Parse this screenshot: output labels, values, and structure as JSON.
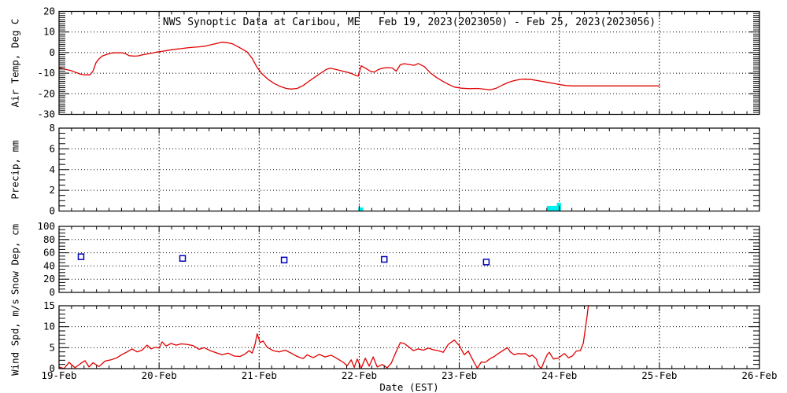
{
  "title": "NWS Synoptic Data at Caribou, ME   Feb 19, 2023(2023050) - Feb 25, 2023(2023056)",
  "colors": {
    "line": "#e00000",
    "precip_bar": "#00eeee",
    "snow_marker": "#0000bb",
    "axis": "#000000",
    "background": "#ffffff"
  },
  "chart_data": {
    "type": "multi-panel",
    "title": "NWS Synoptic Data at Caribou, ME   Feb 19, 2023(2023050) - Feb 25, 2023(2023056)",
    "grid": "dotted horizontal at major y ticks, dotted vertical at each day",
    "x": {
      "label": "Date (EST)",
      "range_days": [
        0,
        7
      ],
      "tick_labels": [
        "19-Feb",
        "20-Feb",
        "21-Feb",
        "22-Feb",
        "23-Feb",
        "24-Feb",
        "25-Feb",
        "26-Feb"
      ],
      "minor_ticks_per_day": 8
    },
    "panels": [
      {
        "name": "air-temp",
        "type": "line",
        "ylabel": "Air Temp, Deg C",
        "ylim": [
          -30,
          20
        ],
        "yticks": [
          20,
          10,
          0,
          -10,
          -20,
          -30
        ],
        "minor_step": 1,
        "points": [
          [
            0.0,
            -7.4
          ],
          [
            0.04,
            -7.9
          ],
          [
            0.09,
            -8.4
          ],
          [
            0.13,
            -8.9
          ],
          [
            0.17,
            -9.7
          ],
          [
            0.21,
            -10.4
          ],
          [
            0.25,
            -10.8
          ],
          [
            0.31,
            -10.8
          ],
          [
            0.34,
            -9.0
          ],
          [
            0.37,
            -4.9
          ],
          [
            0.4,
            -3.0
          ],
          [
            0.43,
            -1.7
          ],
          [
            0.47,
            -1.0
          ],
          [
            0.51,
            -0.4
          ],
          [
            0.55,
            -0.1
          ],
          [
            0.63,
            -0.1
          ],
          [
            0.66,
            -0.4
          ],
          [
            0.7,
            -1.5
          ],
          [
            0.75,
            -1.7
          ],
          [
            0.79,
            -1.6
          ],
          [
            0.84,
            -1.0
          ],
          [
            0.89,
            -0.6
          ],
          [
            0.94,
            -0.2
          ],
          [
            0.98,
            0.3
          ],
          [
            1.04,
            0.7
          ],
          [
            1.1,
            1.2
          ],
          [
            1.16,
            1.6
          ],
          [
            1.22,
            1.9
          ],
          [
            1.28,
            2.3
          ],
          [
            1.34,
            2.6
          ],
          [
            1.4,
            2.8
          ],
          [
            1.46,
            3.1
          ],
          [
            1.52,
            3.8
          ],
          [
            1.58,
            4.5
          ],
          [
            1.63,
            5.0
          ],
          [
            1.68,
            4.8
          ],
          [
            1.73,
            4.3
          ],
          [
            1.78,
            3.1
          ],
          [
            1.83,
            1.7
          ],
          [
            1.88,
            0.3
          ],
          [
            1.93,
            -2.8
          ],
          [
            1.98,
            -7.2
          ],
          [
            2.03,
            -10.4
          ],
          [
            2.09,
            -13.0
          ],
          [
            2.15,
            -15.0
          ],
          [
            2.21,
            -16.4
          ],
          [
            2.27,
            -17.4
          ],
          [
            2.32,
            -17.7
          ],
          [
            2.38,
            -17.4
          ],
          [
            2.44,
            -16.0
          ],
          [
            2.5,
            -13.8
          ],
          [
            2.56,
            -11.8
          ],
          [
            2.62,
            -9.8
          ],
          [
            2.67,
            -8.2
          ],
          [
            2.71,
            -7.6
          ],
          [
            2.76,
            -8.1
          ],
          [
            2.81,
            -8.7
          ],
          [
            2.87,
            -9.4
          ],
          [
            2.92,
            -10.1
          ],
          [
            2.97,
            -11.2
          ],
          [
            2.99,
            -11.4
          ],
          [
            3.02,
            -6.4
          ],
          [
            3.07,
            -7.8
          ],
          [
            3.11,
            -9.0
          ],
          [
            3.15,
            -9.5
          ],
          [
            3.19,
            -8.3
          ],
          [
            3.23,
            -7.6
          ],
          [
            3.28,
            -7.3
          ],
          [
            3.33,
            -7.5
          ],
          [
            3.37,
            -9.0
          ],
          [
            3.41,
            -5.9
          ],
          [
            3.45,
            -5.4
          ],
          [
            3.5,
            -5.8
          ],
          [
            3.55,
            -6.2
          ],
          [
            3.59,
            -5.3
          ],
          [
            3.65,
            -6.8
          ],
          [
            3.71,
            -9.8
          ],
          [
            3.77,
            -12.0
          ],
          [
            3.83,
            -13.8
          ],
          [
            3.89,
            -15.4
          ],
          [
            3.95,
            -16.7
          ],
          [
            4.02,
            -17.3
          ],
          [
            4.1,
            -17.5
          ],
          [
            4.18,
            -17.4
          ],
          [
            4.26,
            -17.8
          ],
          [
            4.31,
            -18.1
          ],
          [
            4.37,
            -17.3
          ],
          [
            4.43,
            -15.8
          ],
          [
            4.49,
            -14.5
          ],
          [
            4.55,
            -13.6
          ],
          [
            4.61,
            -13.0
          ],
          [
            4.66,
            -12.9
          ],
          [
            4.72,
            -13.1
          ],
          [
            4.78,
            -13.6
          ],
          [
            4.84,
            -14.1
          ],
          [
            4.9,
            -14.6
          ],
          [
            4.96,
            -15.1
          ],
          [
            5.01,
            -15.6
          ],
          [
            5.07,
            -16.0
          ],
          [
            5.13,
            -16.2
          ],
          [
            6.0,
            -16.2
          ]
        ]
      },
      {
        "name": "precip",
        "type": "bar",
        "ylabel": "Precip, mm",
        "ylim": [
          0,
          8
        ],
        "yticks": [
          8,
          6,
          4,
          2,
          0
        ],
        "minor_step": 0.5,
        "bars": [
          {
            "day": 2.99,
            "width_days": 0.05,
            "mm": 0.35
          },
          {
            "day": 4.875,
            "width_days": 0.1,
            "mm": 0.5
          },
          {
            "day": 4.975,
            "width_days": 0.042,
            "mm": 0.8
          }
        ]
      },
      {
        "name": "snow-depth",
        "type": "scatter",
        "ylabel": "Snow Dep, cm",
        "ylim": [
          0,
          100
        ],
        "yticks": [
          100,
          80,
          60,
          40,
          20,
          0
        ],
        "minor_step": 5,
        "marker": "open-square",
        "points": [
          [
            0.22,
            54
          ],
          [
            1.235,
            51.5
          ],
          [
            2.25,
            49
          ],
          [
            3.25,
            50
          ],
          [
            4.27,
            46
          ]
        ]
      },
      {
        "name": "wind-speed",
        "type": "line",
        "ylabel": "Wind Spd, m/s",
        "ylim": [
          0,
          15
        ],
        "yticks": [
          15,
          10,
          5,
          0
        ],
        "minor_step": 1,
        "points": [
          [
            0.0,
            0.4
          ],
          [
            0.05,
            0.0
          ],
          [
            0.1,
            1.5
          ],
          [
            0.16,
            0.2
          ],
          [
            0.22,
            1.3
          ],
          [
            0.26,
            1.9
          ],
          [
            0.3,
            0.4
          ],
          [
            0.34,
            1.4
          ],
          [
            0.4,
            0.5
          ],
          [
            0.46,
            1.8
          ],
          [
            0.52,
            2.1
          ],
          [
            0.58,
            2.6
          ],
          [
            0.63,
            3.4
          ],
          [
            0.68,
            4.0
          ],
          [
            0.73,
            4.7
          ],
          [
            0.78,
            4.0
          ],
          [
            0.83,
            4.4
          ],
          [
            0.88,
            5.6
          ],
          [
            0.92,
            4.7
          ],
          [
            0.96,
            5.1
          ],
          [
            1.0,
            4.9
          ],
          [
            1.03,
            6.4
          ],
          [
            1.07,
            5.4
          ],
          [
            1.12,
            6.0
          ],
          [
            1.17,
            5.6
          ],
          [
            1.22,
            5.9
          ],
          [
            1.28,
            5.8
          ],
          [
            1.34,
            5.5
          ],
          [
            1.4,
            4.6
          ],
          [
            1.45,
            5.0
          ],
          [
            1.51,
            4.3
          ],
          [
            1.57,
            3.8
          ],
          [
            1.63,
            3.3
          ],
          [
            1.69,
            3.7
          ],
          [
            1.75,
            3.0
          ],
          [
            1.81,
            2.9
          ],
          [
            1.86,
            3.5
          ],
          [
            1.9,
            4.3
          ],
          [
            1.93,
            3.7
          ],
          [
            1.96,
            5.9
          ],
          [
            1.98,
            8.3
          ],
          [
            2.01,
            6.2
          ],
          [
            2.04,
            6.6
          ],
          [
            2.08,
            5.1
          ],
          [
            2.14,
            4.3
          ],
          [
            2.2,
            4.0
          ],
          [
            2.26,
            4.4
          ],
          [
            2.32,
            3.7
          ],
          [
            2.38,
            2.9
          ],
          [
            2.44,
            2.4
          ],
          [
            2.48,
            3.3
          ],
          [
            2.54,
            2.6
          ],
          [
            2.6,
            3.4
          ],
          [
            2.66,
            2.8
          ],
          [
            2.72,
            3.2
          ],
          [
            2.78,
            2.4
          ],
          [
            2.84,
            1.5
          ],
          [
            2.88,
            0.7
          ],
          [
            2.92,
            2.1
          ],
          [
            2.95,
            0.3
          ],
          [
            2.98,
            2.3
          ],
          [
            3.02,
            0.1
          ],
          [
            3.06,
            2.5
          ],
          [
            3.1,
            0.6
          ],
          [
            3.14,
            2.8
          ],
          [
            3.18,
            0.4
          ],
          [
            3.23,
            1.0
          ],
          [
            3.28,
            0.2
          ],
          [
            3.32,
            1.3
          ],
          [
            3.37,
            4.1
          ],
          [
            3.41,
            6.2
          ],
          [
            3.45,
            6.0
          ],
          [
            3.5,
            5.1
          ],
          [
            3.54,
            4.3
          ],
          [
            3.59,
            4.7
          ],
          [
            3.64,
            4.4
          ],
          [
            3.69,
            4.9
          ],
          [
            3.74,
            4.5
          ],
          [
            3.79,
            4.3
          ],
          [
            3.84,
            3.9
          ],
          [
            3.89,
            5.8
          ],
          [
            3.95,
            6.8
          ],
          [
            4.0,
            5.5
          ],
          [
            4.05,
            3.3
          ],
          [
            4.09,
            4.2
          ],
          [
            4.13,
            2.3
          ],
          [
            4.18,
            0.1
          ],
          [
            4.22,
            1.6
          ],
          [
            4.26,
            1.5
          ],
          [
            4.31,
            2.4
          ],
          [
            4.35,
            2.9
          ],
          [
            4.39,
            3.6
          ],
          [
            4.43,
            4.2
          ],
          [
            4.48,
            5.0
          ],
          [
            4.51,
            4.0
          ],
          [
            4.55,
            3.3
          ],
          [
            4.59,
            3.6
          ],
          [
            4.62,
            3.5
          ],
          [
            4.66,
            3.6
          ],
          [
            4.7,
            2.9
          ],
          [
            4.73,
            3.2
          ],
          [
            4.77,
            2.3
          ],
          [
            4.79,
            0.8
          ],
          [
            4.82,
            0.0
          ],
          [
            4.85,
            1.8
          ],
          [
            4.88,
            3.4
          ],
          [
            4.9,
            3.9
          ],
          [
            4.94,
            2.3
          ],
          [
            4.99,
            2.5
          ],
          [
            5.01,
            2.9
          ],
          [
            5.05,
            3.6
          ],
          [
            5.09,
            2.6
          ],
          [
            5.13,
            3.0
          ],
          [
            5.17,
            4.2
          ],
          [
            5.21,
            4.3
          ],
          [
            5.24,
            6.1
          ],
          [
            5.26,
            9.6
          ],
          [
            5.28,
            13.0
          ],
          [
            5.3,
            17.0
          ]
        ]
      }
    ]
  }
}
